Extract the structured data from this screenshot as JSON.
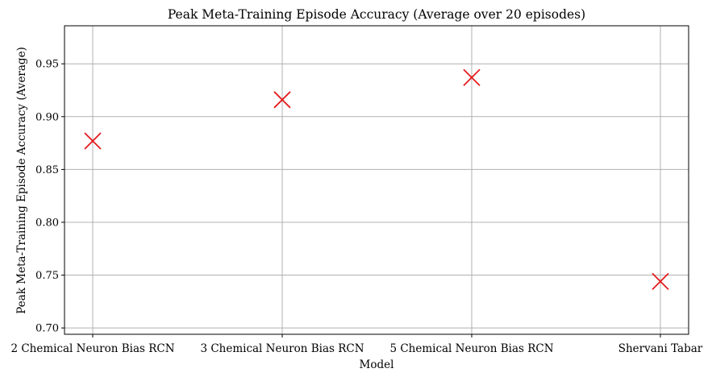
{
  "chart_data": {
    "type": "scatter",
    "title": "Peak Meta-Training Episode Accuracy (Average over 20 episodes)",
    "xlabel": "Model",
    "ylabel": "Peak Meta-Training Episode Accuracy (Average)",
    "categories": [
      "2 Chemical Neuron Bias RCN",
      "3 Chemical Neuron Bias RCN",
      "5 Chemical Neuron Bias RCN",
      "Shervani Tabar"
    ],
    "values": [
      0.877,
      0.916,
      0.937,
      0.744
    ],
    "ylim": [
      0.694,
      0.986
    ],
    "yticks": [
      0.7,
      0.75,
      0.8,
      0.85,
      0.9,
      0.95
    ],
    "ytick_labels": [
      "0.70",
      "0.75",
      "0.80",
      "0.85",
      "0.90",
      "0.95"
    ],
    "grid": true,
    "marker": "x",
    "marker_color": "#e41a1c"
  }
}
